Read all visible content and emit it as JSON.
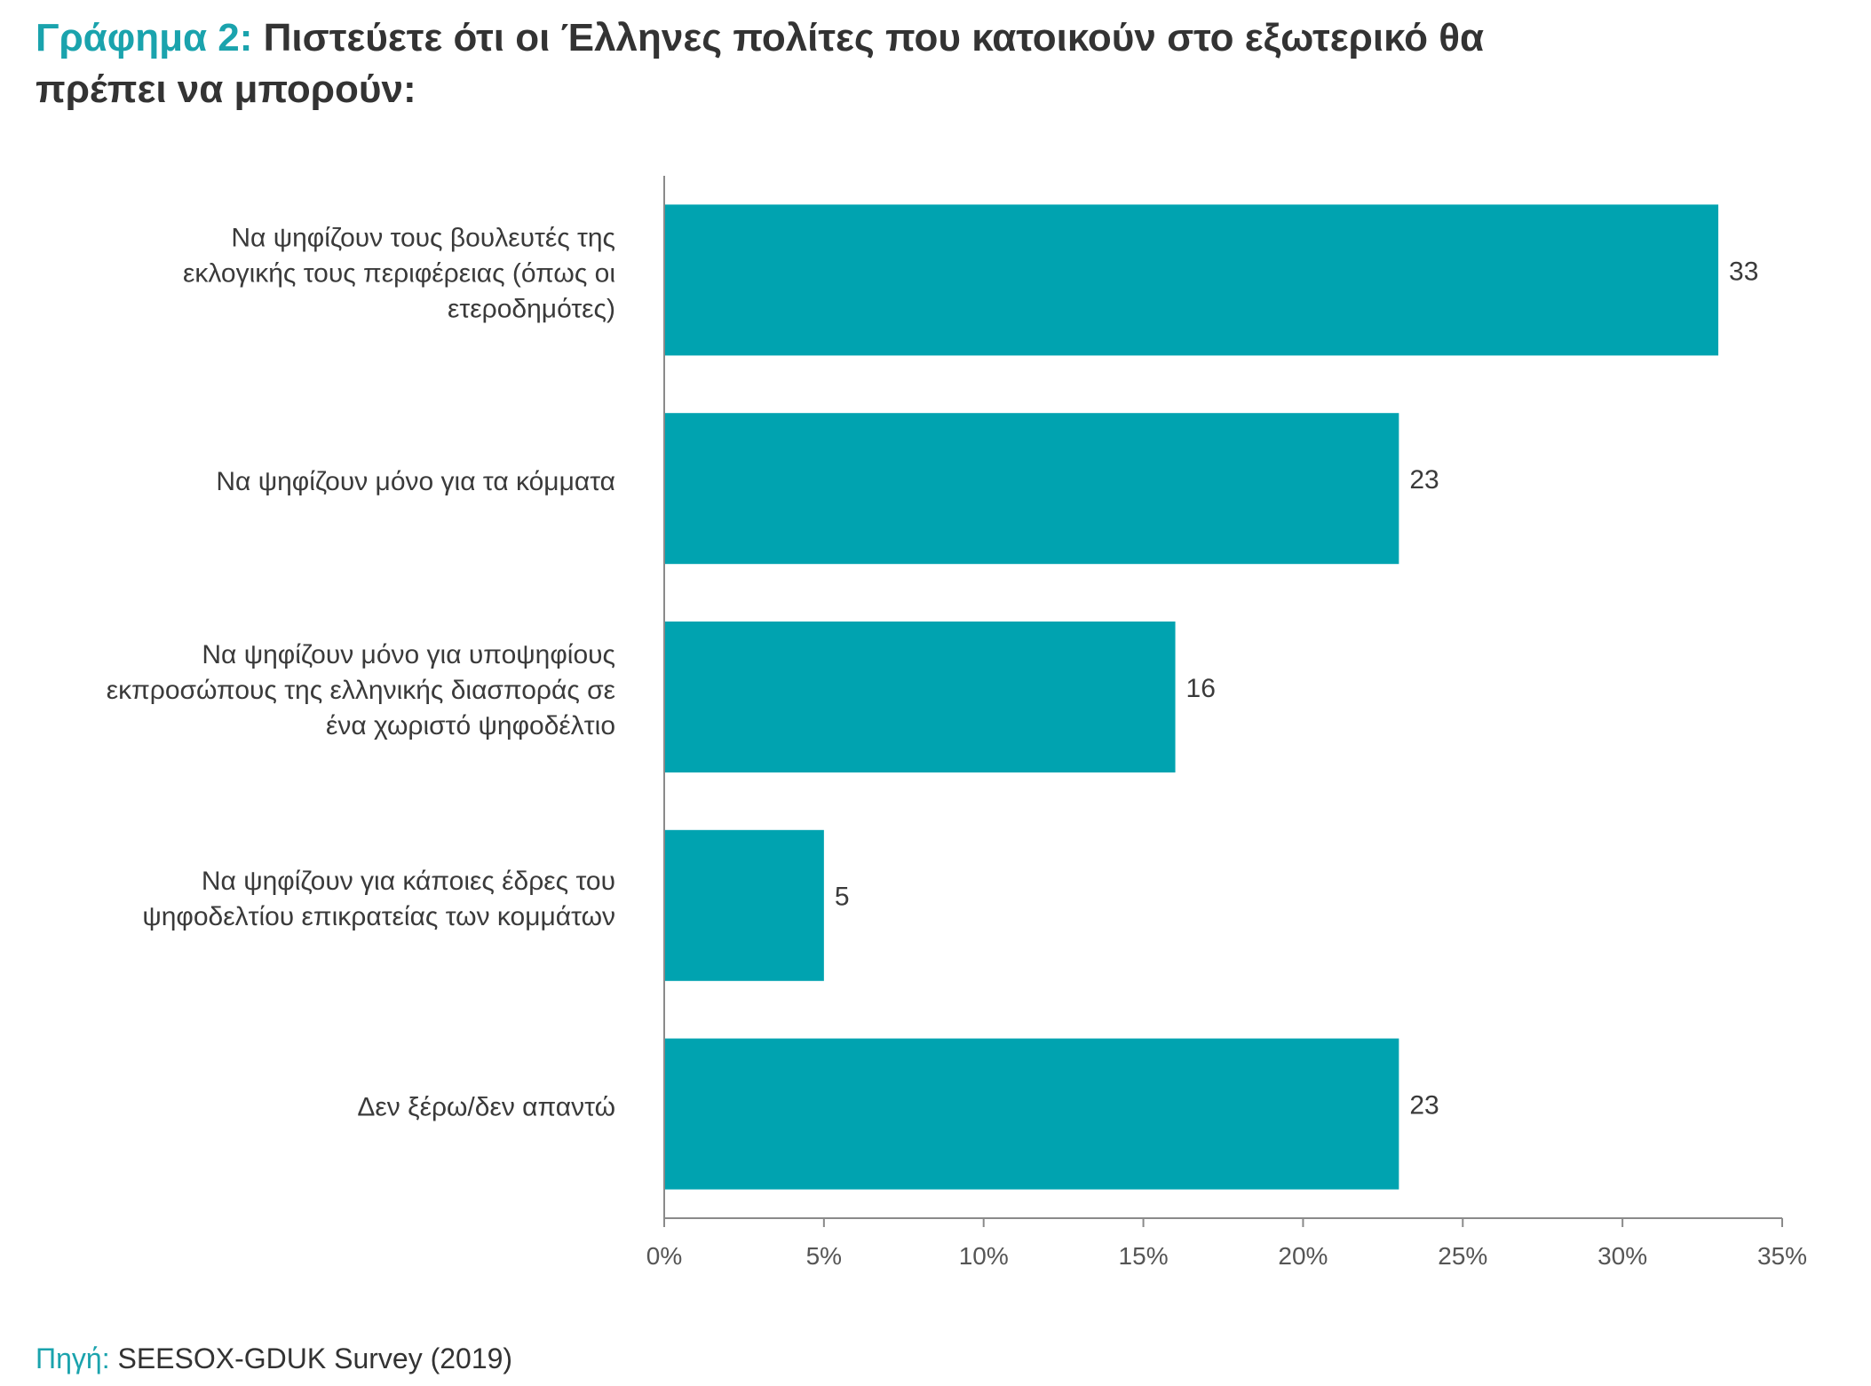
{
  "title": {
    "prefix": "Γράφημα 2:",
    "text": "Πιστεύετε ότι οι Έλληνες πολίτες που κατοικούν στο εξωτερικό θα πρέπει να μπορούν:"
  },
  "source": {
    "label": "Πηγή:",
    "text": "SEESOX-GDUK Survey (2019)"
  },
  "chart_data": {
    "type": "bar",
    "orientation": "horizontal",
    "categories": [
      [
        "Να ψηφίζουν τους βουλευτές της",
        "εκλογικής τους περιφέρειας (όπως οι",
        "ετεροδημότες)"
      ],
      [
        "Να ψηφίζουν μόνο για τα κόμματα"
      ],
      [
        "Να ψηφίζουν μόνο για υποψηφίους",
        "εκπροσώπους της ελληνικής διασποράς σε",
        "ένα χωριστό ψηφοδέλτιο"
      ],
      [
        "Να ψηφίζουν για κάποιες έδρες του",
        "ψηφοδελτίου επικρατείας των κομμάτων"
      ],
      [
        "Δεν ξέρω/δεν απαντώ"
      ]
    ],
    "values": [
      33,
      23,
      16,
      5,
      23
    ],
    "data_labels": [
      "33",
      "23",
      "16",
      "5",
      "23"
    ],
    "xlim": [
      0,
      35
    ],
    "x_ticks": [
      0,
      5,
      10,
      15,
      20,
      25,
      30,
      35
    ],
    "x_tick_labels": [
      "0%",
      "5%",
      "10%",
      "15%",
      "20%",
      "25%",
      "30%",
      "35%"
    ],
    "grid": false,
    "legend": "none",
    "bar_color": "#00a3b0",
    "axis_color": "#8a8a8a"
  }
}
